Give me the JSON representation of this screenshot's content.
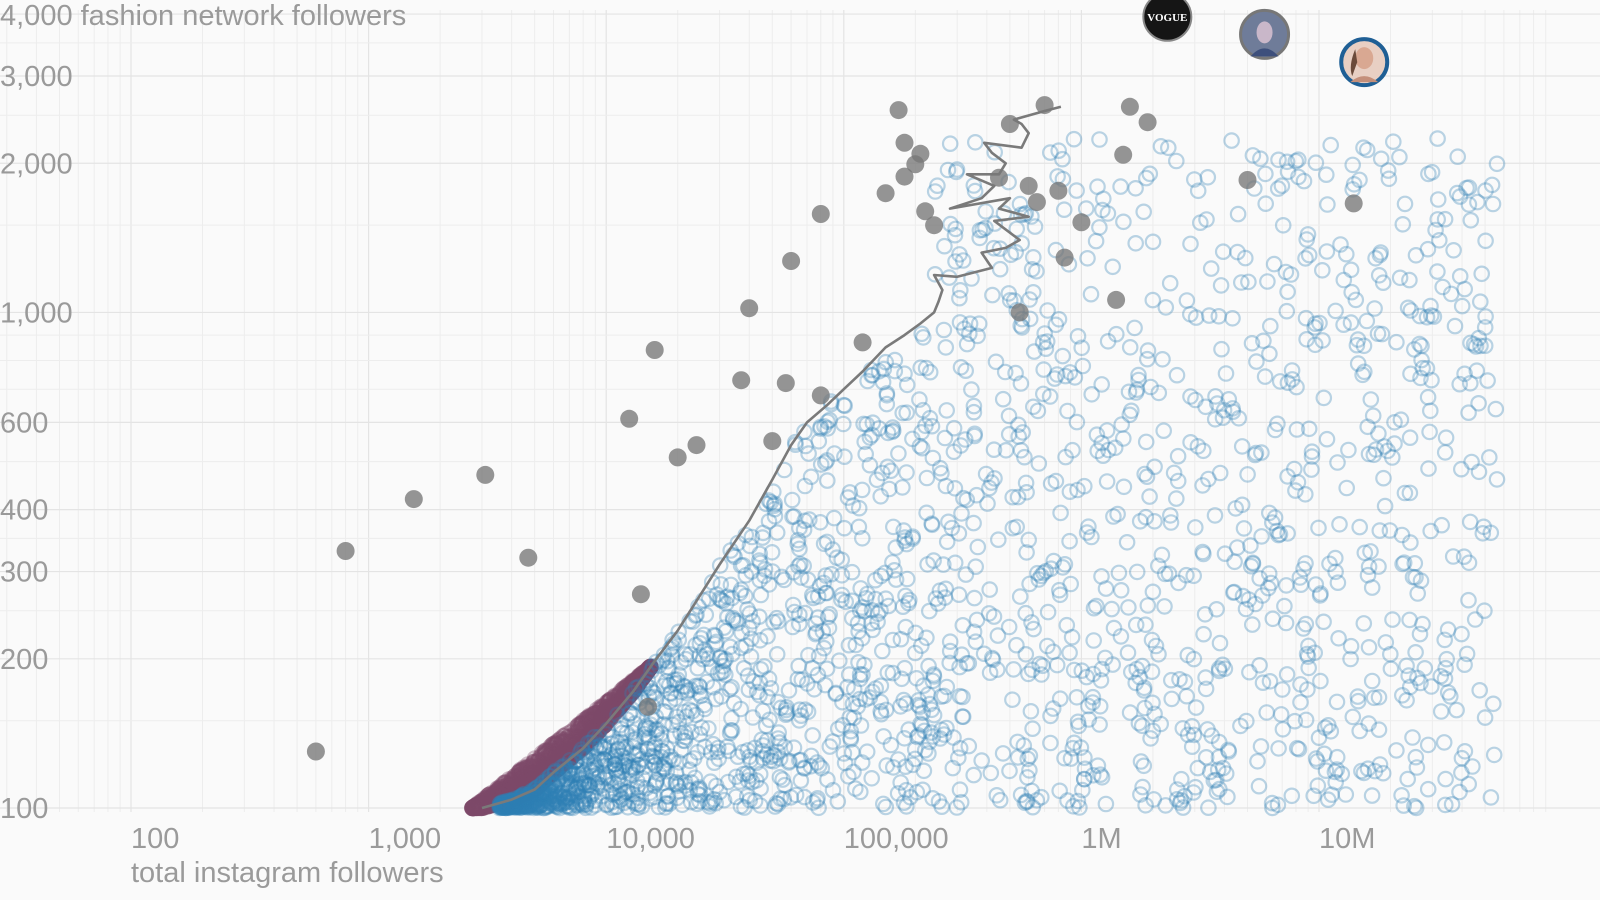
{
  "chart_data": {
    "type": "scatter",
    "title": "",
    "xlabel": "total instagram followers",
    "ylabel": "fashion network followers",
    "xscale": "log",
    "yscale": "log",
    "xlim": [
      40,
      100000000
    ],
    "ylim": [
      95,
      4300
    ],
    "x_ticks": [
      {
        "value": 100,
        "label": "100"
      },
      {
        "value": 1000,
        "label": "1,000"
      },
      {
        "value": 10000,
        "label": "10,000"
      },
      {
        "value": 100000,
        "label": "100,000"
      },
      {
        "value": 1000000,
        "label": "1M"
      },
      {
        "value": 10000000,
        "label": "10M"
      }
    ],
    "y_ticks": [
      {
        "value": 100,
        "label": "100"
      },
      {
        "value": 200,
        "label": "200"
      },
      {
        "value": 300,
        "label": "300"
      },
      {
        "value": 400,
        "label": "400"
      },
      {
        "value": 600,
        "label": "600"
      },
      {
        "value": 1000,
        "label": "1,000"
      },
      {
        "value": 2000,
        "label": "2,000"
      },
      {
        "value": 3000,
        "label": "3,000"
      },
      {
        "value": 4000,
        "label": "4,000"
      }
    ],
    "y_top_label": "4,000 fashion network followers",
    "grid": true,
    "legend": "none",
    "colors": {
      "above_trend": "#7d4a6b",
      "below_trend": "#2f7fb5",
      "highlight": "#777777",
      "trend_line": "#7a7a7a",
      "avatar_ring": "#1f5f95"
    },
    "trend_line": {
      "x": [
        3000,
        4000,
        5000,
        6000,
        8000,
        10000,
        13000,
        16000,
        20000,
        25000,
        30000,
        40000,
        50000,
        60000,
        70000,
        85000,
        100000,
        120000,
        150000,
        180000,
        210000,
        240000,
        250000,
        260000,
        240000,
        300000,
        420000,
        380000,
        480000,
        550000,
        430000,
        600000,
        450000,
        500000,
        280000,
        380000,
        430000,
        330000,
        450000,
        480000,
        420000,
        390000,
        560000,
        600000,
        560000,
        520000,
        700000,
        820000
      ],
      "y": [
        100,
        104,
        109,
        118,
        132,
        148,
        172,
        198,
        228,
        270,
        310,
        380,
        460,
        540,
        600,
        650,
        700,
        760,
        850,
        900,
        950,
        1000,
        1050,
        1110,
        1190,
        1180,
        1230,
        1320,
        1350,
        1400,
        1530,
        1560,
        1620,
        1700,
        1620,
        1700,
        1800,
        1900,
        1900,
        2000,
        2100,
        2200,
        2150,
        2300,
        2400,
        2450,
        2550,
        2600
      ]
    },
    "highlight_points": {
      "x": [
        600,
        800,
        1550,
        3100,
        4700,
        14000,
        15000,
        12500,
        16000,
        20000,
        24000,
        37000,
        40000,
        50000,
        57000,
        60000,
        80000,
        80000,
        120000,
        150000,
        170000,
        180000,
        200000,
        180000,
        240000,
        220000,
        210000,
        450000,
        500000,
        550000,
        650000,
        700000,
        600000,
        1000000,
        800000,
        850000,
        1400000,
        1500000,
        1600000,
        1900000,
        5000000,
        14000000
      ],
      "y": [
        130,
        330,
        420,
        470,
        320,
        270,
        160,
        610,
        840,
        510,
        540,
        730,
        1020,
        550,
        720,
        1270,
        1580,
        680,
        870,
        1740,
        2560,
        2200,
        1990,
        1880,
        1500,
        1600,
        2090,
        1870,
        2400,
        1000,
        1670,
        2620,
        1800,
        1520,
        1760,
        1290,
        1060,
        2080,
        2600,
        2420,
        1850,
        1660
      ]
    },
    "avatars": [
      {
        "name": "VOGUE",
        "x": 2300000,
        "y": 3950
      },
      {
        "name": "profile-2",
        "x": 5900000,
        "y": 3640
      },
      {
        "name": "profile-3",
        "x": 15500000,
        "y": 3200
      }
    ],
    "clouds": {
      "above_trend": {
        "count": 1900,
        "x_range": [
          550,
          300000
        ],
        "y_range": [
          100,
          2350
        ]
      },
      "below_trend": {
        "count": 2200,
        "x_range": [
          3000,
          60000000
        ],
        "y_range": [
          100,
          2250
        ]
      }
    }
  }
}
